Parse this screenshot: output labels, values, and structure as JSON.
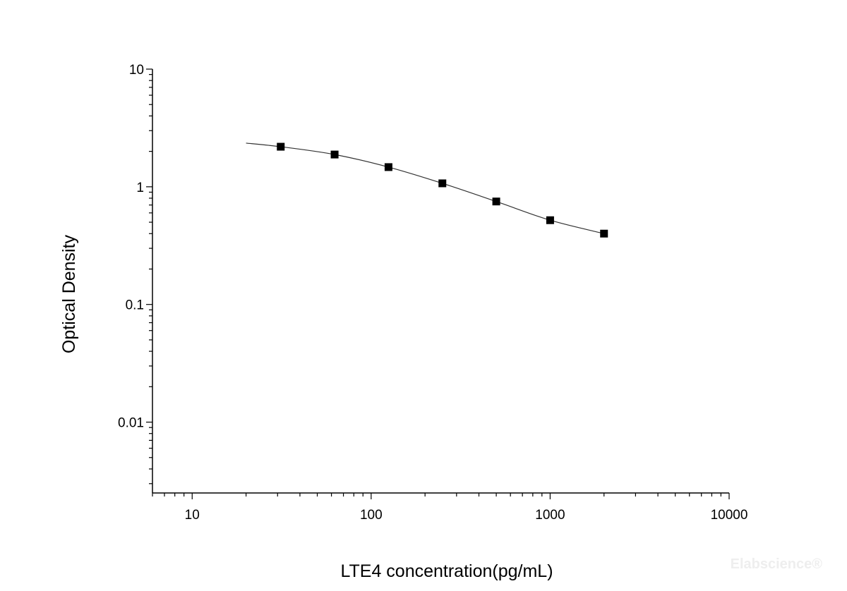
{
  "chart_data": {
    "type": "scatter",
    "title": "",
    "xlabel": "LTE4 concentration(pg/mL)",
    "ylabel": "Optical Density",
    "xscale": "log",
    "yscale": "log",
    "xlim": [
      6,
      10000
    ],
    "ylim": [
      0.0025,
      10
    ],
    "x_ticks": [
      10,
      100,
      1000,
      10000
    ],
    "x_tick_labels": [
      "10",
      "100",
      "1000",
      "10000"
    ],
    "y_ticks": [
      10,
      1,
      0.1,
      0.01
    ],
    "y_tick_labels": [
      "10",
      "1",
      "0.1",
      "0.01"
    ],
    "grid": false,
    "series": [
      {
        "marker": "square",
        "color": "#000000",
        "x": [
          31.25,
          62.5,
          125,
          250,
          500,
          1000,
          2000
        ],
        "y": [
          2.19,
          1.88,
          1.47,
          1.07,
          0.75,
          0.52,
          0.4
        ]
      }
    ],
    "fit_curve": {
      "color": "#333333",
      "x": [
        20,
        31.25,
        62.5,
        125,
        250,
        500,
        1000,
        2000
      ],
      "y": [
        2.35,
        2.19,
        1.88,
        1.47,
        1.07,
        0.75,
        0.52,
        0.4
      ]
    },
    "watermark": "Elabscience®"
  }
}
